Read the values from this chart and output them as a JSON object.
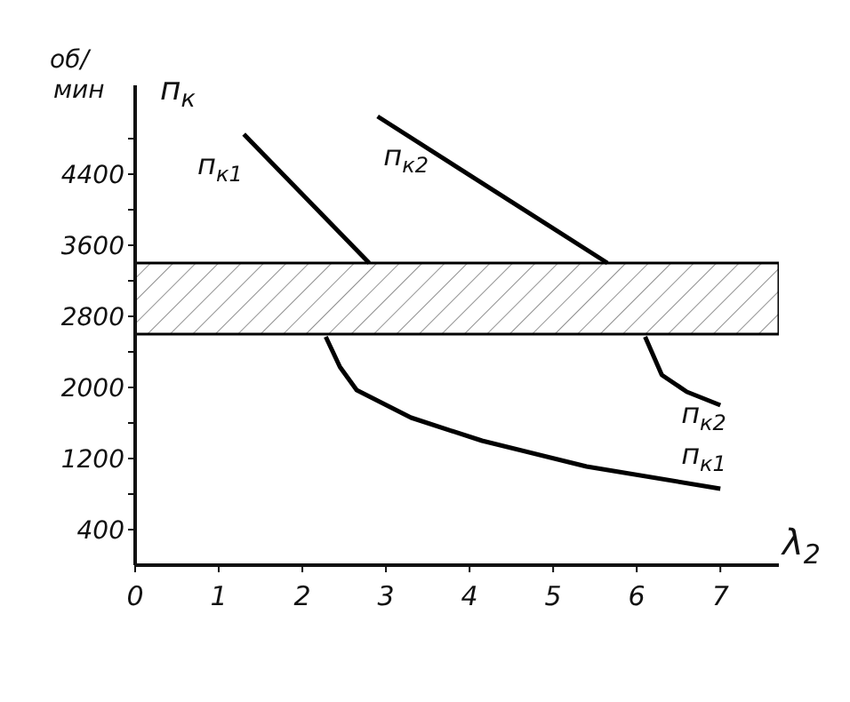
{
  "chart_data": {
    "type": "line",
    "title": "п$_{к}$",
    "ylabel": "об/мин",
    "xlabel": "λ$_{2}$",
    "xlim": [
      0,
      7.7
    ],
    "xticks": [
      0,
      1,
      2,
      3,
      4,
      5,
      6,
      7
    ],
    "ylim": [
      0,
      5400
    ],
    "yticks": [
      {
        "value": 400,
        "label": "400"
      },
      {
        "value": 800,
        "label": null
      },
      {
        "value": 1200,
        "label": "1200"
      },
      {
        "value": 1600,
        "label": null
      },
      {
        "value": 2000,
        "label": "2000"
      },
      {
        "value": 2400,
        "label": null
      },
      {
        "value": 2800,
        "label": "2800"
      },
      {
        "value": 3200,
        "label": null
      },
      {
        "value": 3600,
        "label": "3600"
      },
      {
        "value": 4000,
        "label": null
      },
      {
        "value": 4400,
        "label": "4400"
      },
      {
        "value": 4800,
        "label": null
      }
    ],
    "grid": false,
    "legend": false,
    "marker": "none",
    "line_style": "solid",
    "bands": [
      {
        "axis": "y",
        "from": 2600,
        "to": 3400,
        "color": "#000000"
      }
    ],
    "series": [
      {
        "name": "п$_{к1}$",
        "color": "#000000",
        "x": [
          1.3,
          2.8
        ],
        "values": [
          4850,
          3400
        ]
      },
      {
        "name": "п$_{к2}$",
        "color": "#000000",
        "x": [
          2.9,
          5.65
        ],
        "values": [
          5050,
          3400
        ]
      },
      {
        "name": "п$_{к2}$",
        "color": "#000000",
        "x": [
          6.1,
          6.3,
          6.6,
          7.0
        ],
        "values": [
          2570,
          2140,
          1950,
          1800
        ]
      },
      {
        "name": "п$_{к1}$",
        "color": "#000000",
        "x": [
          2.28,
          2.45,
          2.65,
          3.3,
          4.15,
          5.4,
          7.0
        ],
        "values": [
          2570,
          2230,
          1970,
          1660,
          1400,
          1110,
          860
        ]
      }
    ]
  }
}
